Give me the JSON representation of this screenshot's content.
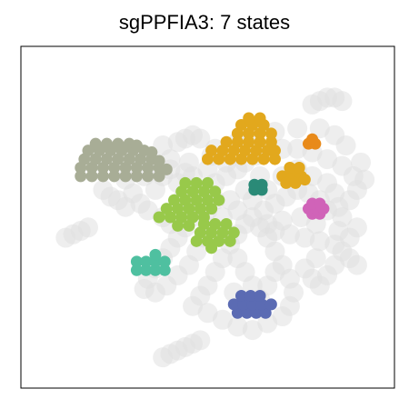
{
  "chart_data": {
    "type": "scatter",
    "title": "sgPPFIA3: 7 states",
    "xlabel": "",
    "ylabel": "",
    "xlim": [
      0,
      100
    ],
    "ylim": [
      0,
      100
    ],
    "grid": false,
    "legend": "none",
    "background_color": "#e0e0e0",
    "background": [
      [
        30,
        65
      ],
      [
        35,
        66
      ],
      [
        40,
        67
      ],
      [
        45,
        66
      ],
      [
        50,
        64
      ],
      [
        42,
        60
      ],
      [
        36,
        58
      ],
      [
        30,
        57
      ],
      [
        48,
        58
      ],
      [
        52,
        60
      ],
      [
        55,
        62
      ],
      [
        58,
        64
      ],
      [
        60,
        66
      ],
      [
        63,
        68
      ],
      [
        66,
        69
      ],
      [
        70,
        70
      ],
      [
        74,
        70
      ],
      [
        78,
        69
      ],
      [
        82,
        67
      ],
      [
        86,
        65
      ],
      [
        89,
        62
      ],
      [
        90,
        58
      ],
      [
        88,
        55
      ],
      [
        85,
        53
      ],
      [
        82,
        52
      ],
      [
        80,
        55
      ],
      [
        77,
        57
      ],
      [
        74,
        58
      ],
      [
        71,
        56
      ],
      [
        68,
        54
      ],
      [
        65,
        52
      ],
      [
        62,
        50
      ],
      [
        60,
        48
      ],
      [
        58,
        45
      ],
      [
        56,
        42
      ],
      [
        54,
        38
      ],
      [
        52,
        34
      ],
      [
        50,
        30
      ],
      [
        48,
        27
      ],
      [
        46,
        24
      ],
      [
        50,
        22
      ],
      [
        54,
        20
      ],
      [
        58,
        18
      ],
      [
        62,
        17
      ],
      [
        66,
        19
      ],
      [
        70,
        21
      ],
      [
        72,
        24
      ],
      [
        73,
        28
      ],
      [
        72,
        32
      ],
      [
        70,
        36
      ],
      [
        68,
        40
      ],
      [
        66,
        44
      ],
      [
        64,
        47
      ],
      [
        72,
        45
      ],
      [
        76,
        44
      ],
      [
        80,
        43
      ],
      [
        84,
        42
      ],
      [
        88,
        44
      ],
      [
        90,
        47
      ],
      [
        86,
        50
      ],
      [
        79,
        48
      ],
      [
        75,
        50
      ],
      [
        22,
        58
      ],
      [
        24,
        56
      ],
      [
        26,
        55
      ],
      [
        28,
        53
      ],
      [
        32,
        54
      ],
      [
        34,
        52
      ],
      [
        38,
        50
      ],
      [
        40,
        48
      ],
      [
        44,
        47
      ],
      [
        42,
        44
      ],
      [
        40,
        41
      ],
      [
        38,
        38
      ],
      [
        36,
        35
      ],
      [
        34,
        32
      ],
      [
        33,
        29
      ],
      [
        36,
        28
      ],
      [
        39,
        30
      ],
      [
        42,
        33
      ],
      [
        45,
        36
      ],
      [
        47,
        40
      ],
      [
        49,
        44
      ],
      [
        51,
        47
      ],
      [
        48,
        50
      ],
      [
        45,
        52
      ],
      [
        43,
        55
      ],
      [
        46,
        62
      ],
      [
        52,
        70
      ],
      [
        40,
        64
      ],
      [
        58,
        72
      ],
      [
        62,
        74
      ],
      [
        68,
        75
      ],
      [
        74,
        76
      ],
      [
        80,
        76
      ],
      [
        84,
        74
      ],
      [
        87,
        71
      ],
      [
        91,
        66
      ],
      [
        92,
        61
      ],
      [
        60,
        58
      ],
      [
        62,
        55
      ],
      [
        66,
        58
      ],
      [
        70,
        62
      ],
      [
        74,
        64
      ],
      [
        78,
        62
      ],
      [
        82,
        60
      ],
      [
        84,
        57
      ],
      [
        64,
        62
      ],
      [
        56,
        55
      ],
      [
        58,
        52
      ],
      [
        76,
        35
      ],
      [
        78,
        32
      ],
      [
        80,
        30
      ],
      [
        82,
        33
      ],
      [
        84,
        36
      ],
      [
        79,
        38
      ],
      [
        64,
        26
      ],
      [
        66,
        30
      ],
      [
        68,
        34
      ],
      [
        62,
        30
      ],
      [
        60,
        34
      ],
      [
        58,
        38
      ],
      [
        57,
        28
      ],
      [
        60,
        24
      ],
      [
        28,
        61
      ],
      [
        33,
        62
      ],
      [
        38,
        62
      ],
      [
        44,
        63
      ],
      [
        55,
        66
      ],
      [
        51,
        68
      ],
      [
        12,
        44
      ],
      [
        14,
        45
      ],
      [
        16,
        46
      ],
      [
        18,
        47
      ],
      [
        40,
        10
      ],
      [
        42,
        11
      ],
      [
        44,
        12
      ],
      [
        46,
        13
      ],
      [
        48,
        14
      ],
      [
        38,
        9
      ],
      [
        80,
        84
      ],
      [
        82,
        85
      ],
      [
        84,
        85
      ],
      [
        86,
        84
      ],
      [
        78,
        83
      ],
      [
        42,
        72
      ],
      [
        44,
        73
      ],
      [
        46,
        74
      ],
      [
        48,
        73
      ],
      [
        38,
        71
      ],
      [
        86,
        40
      ],
      [
        88,
        38
      ],
      [
        90,
        36
      ],
      [
        85,
        46
      ],
      [
        70,
        49
      ],
      [
        68,
        46
      ],
      [
        66,
        48
      ],
      [
        52,
        55
      ],
      [
        54,
        50
      ],
      [
        50,
        52
      ]
    ],
    "series": [
      {
        "color": "#a8ad96",
        "points": [
          [
            16,
            62
          ],
          [
            19,
            62
          ],
          [
            22,
            62
          ],
          [
            25,
            62
          ],
          [
            28,
            62
          ],
          [
            31,
            62
          ],
          [
            34,
            62
          ],
          [
            37,
            62
          ],
          [
            16,
            64.5
          ],
          [
            19,
            64.5
          ],
          [
            22,
            64.5
          ],
          [
            25,
            64.5
          ],
          [
            28,
            64.5
          ],
          [
            31,
            64.5
          ],
          [
            34,
            64.5
          ],
          [
            37,
            64.5
          ],
          [
            39,
            64
          ],
          [
            17,
            67
          ],
          [
            20,
            67
          ],
          [
            23,
            67
          ],
          [
            26,
            67
          ],
          [
            29,
            67
          ],
          [
            32,
            67
          ],
          [
            35,
            67
          ],
          [
            37,
            66.5
          ],
          [
            18,
            69.5
          ],
          [
            21,
            69.5
          ],
          [
            24,
            69.5
          ],
          [
            27,
            69.5
          ],
          [
            30,
            69.5
          ],
          [
            33,
            69.5
          ],
          [
            35,
            69
          ],
          [
            20,
            71.5
          ],
          [
            23,
            71.5
          ],
          [
            26,
            71.5
          ],
          [
            29,
            71.5
          ],
          [
            31,
            71
          ]
        ]
      },
      {
        "color": "#e2a81d",
        "points": [
          [
            50,
            67
          ],
          [
            53,
            67
          ],
          [
            56,
            67
          ],
          [
            59,
            67
          ],
          [
            62,
            67
          ],
          [
            65,
            67
          ],
          [
            68,
            67
          ],
          [
            51,
            69.5
          ],
          [
            54,
            69.5
          ],
          [
            57,
            69.5
          ],
          [
            60,
            69.5
          ],
          [
            63,
            69.5
          ],
          [
            66,
            69.5
          ],
          [
            68,
            69.5
          ],
          [
            55,
            72
          ],
          [
            58,
            72
          ],
          [
            61,
            72
          ],
          [
            64,
            72
          ],
          [
            67,
            72
          ],
          [
            58,
            74.5
          ],
          [
            61,
            74.5
          ],
          [
            64,
            74.5
          ],
          [
            67,
            74.5
          ],
          [
            59,
            77
          ],
          [
            62,
            77
          ],
          [
            65,
            77
          ],
          [
            61,
            79
          ],
          [
            64,
            79
          ]
        ]
      },
      {
        "color": "#e2a81d",
        "points": [
          [
            70,
            62
          ],
          [
            72.5,
            62
          ],
          [
            75,
            62
          ],
          [
            72,
            64.5
          ],
          [
            74.5,
            64.5
          ],
          [
            71,
            60
          ],
          [
            73.5,
            60
          ],
          [
            76,
            61
          ]
        ]
      },
      {
        "color": "#e88a1a",
        "points": [
          [
            77,
            71.5
          ],
          [
            78.8,
            71.5
          ],
          [
            78,
            72.8
          ]
        ]
      },
      {
        "color": "#98c94a",
        "points": [
          [
            37,
            50
          ],
          [
            40,
            50
          ],
          [
            43,
            50
          ],
          [
            46,
            50
          ],
          [
            49,
            50
          ],
          [
            39,
            52.5
          ],
          [
            42,
            52.5
          ],
          [
            45,
            52.5
          ],
          [
            48,
            52.5
          ],
          [
            51,
            52.5
          ],
          [
            41,
            55
          ],
          [
            44,
            55
          ],
          [
            47,
            55
          ],
          [
            50,
            55
          ],
          [
            53,
            55
          ],
          [
            43,
            57.5
          ],
          [
            46,
            57.5
          ],
          [
            49,
            57.5
          ],
          [
            52,
            57.5
          ],
          [
            44,
            60
          ],
          [
            47,
            60
          ],
          [
            50,
            60
          ],
          [
            42,
            47.5
          ],
          [
            45,
            47.5
          ]
        ]
      },
      {
        "color": "#98c94a",
        "points": [
          [
            47,
            43
          ],
          [
            50,
            43
          ],
          [
            53,
            43
          ],
          [
            56,
            43
          ],
          [
            48,
            45.5
          ],
          [
            51,
            45.5
          ],
          [
            54,
            45.5
          ],
          [
            57,
            45.5
          ],
          [
            49,
            48
          ],
          [
            52,
            48
          ],
          [
            55,
            48
          ],
          [
            51,
            41
          ]
        ]
      },
      {
        "color": "#2a8a77",
        "points": [
          [
            62.5,
            58
          ],
          [
            64.5,
            58
          ],
          [
            62.5,
            59.5
          ],
          [
            64.5,
            59.5
          ]
        ]
      },
      {
        "color": "#d063b8",
        "points": [
          [
            78,
            51
          ],
          [
            80,
            51
          ],
          [
            77,
            52.5
          ],
          [
            79,
            52.5
          ],
          [
            81,
            52.5
          ],
          [
            78,
            54
          ],
          [
            80,
            54
          ]
        ]
      },
      {
        "color": "#4fc0a0",
        "points": [
          [
            31,
            34.5
          ],
          [
            33.5,
            34.5
          ],
          [
            36,
            34.5
          ],
          [
            38.5,
            34.5
          ],
          [
            31,
            37
          ],
          [
            33.5,
            37
          ],
          [
            36,
            37
          ],
          [
            38.5,
            37
          ],
          [
            36,
            39
          ]
        ]
      },
      {
        "color": "#5b6bb3",
        "points": [
          [
            58,
            22
          ],
          [
            60.5,
            22
          ],
          [
            63,
            22
          ],
          [
            65.5,
            22
          ],
          [
            57,
            24.5
          ],
          [
            59.5,
            24.5
          ],
          [
            62,
            24.5
          ],
          [
            64.5,
            24.5
          ],
          [
            67,
            24.5
          ],
          [
            59,
            27
          ],
          [
            61.5,
            27
          ],
          [
            64,
            27
          ]
        ]
      }
    ]
  }
}
